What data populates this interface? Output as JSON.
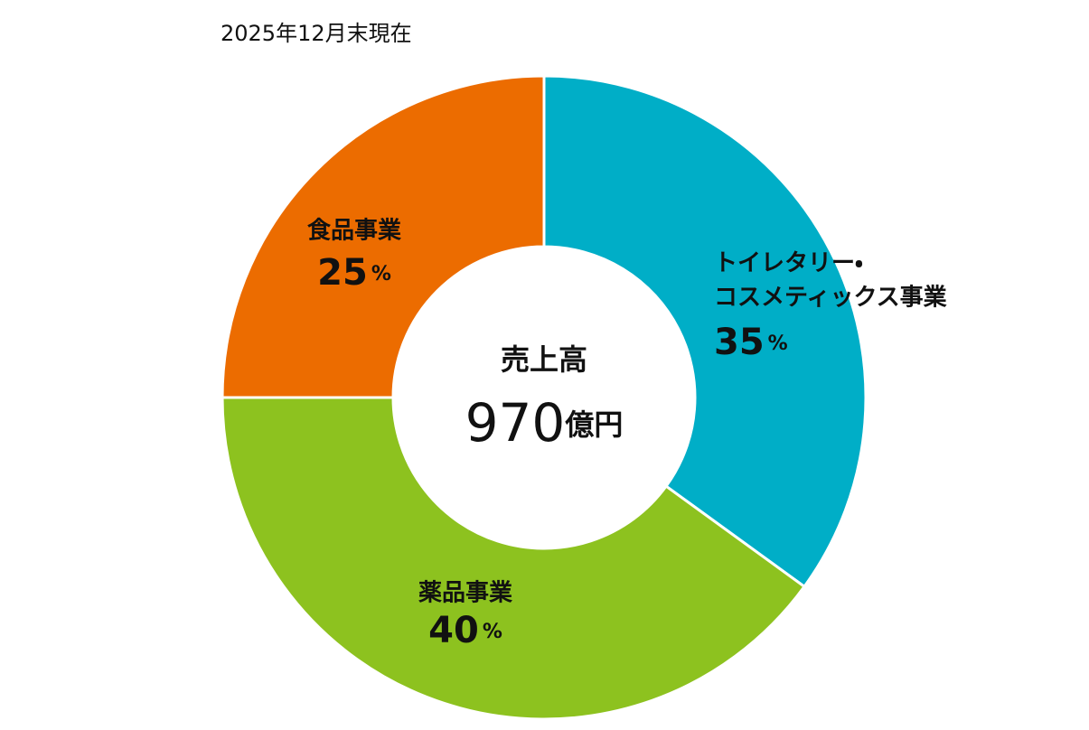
{
  "chart_data": {
    "type": "donut",
    "subtitle": "2025年12月末現在",
    "center_label": "売上高",
    "center_value": 970,
    "center_unit": "億円",
    "categories": [
      [
        "トイレタリー・",
        "コスメティックス事業"
      ],
      [
        "薬品事業"
      ],
      [
        "食品事業"
      ]
    ],
    "values": [
      35,
      40,
      25
    ],
    "value_unit": "%",
    "colors": [
      "#00aec7",
      "#8dc21f",
      "#ec6c00"
    ]
  }
}
